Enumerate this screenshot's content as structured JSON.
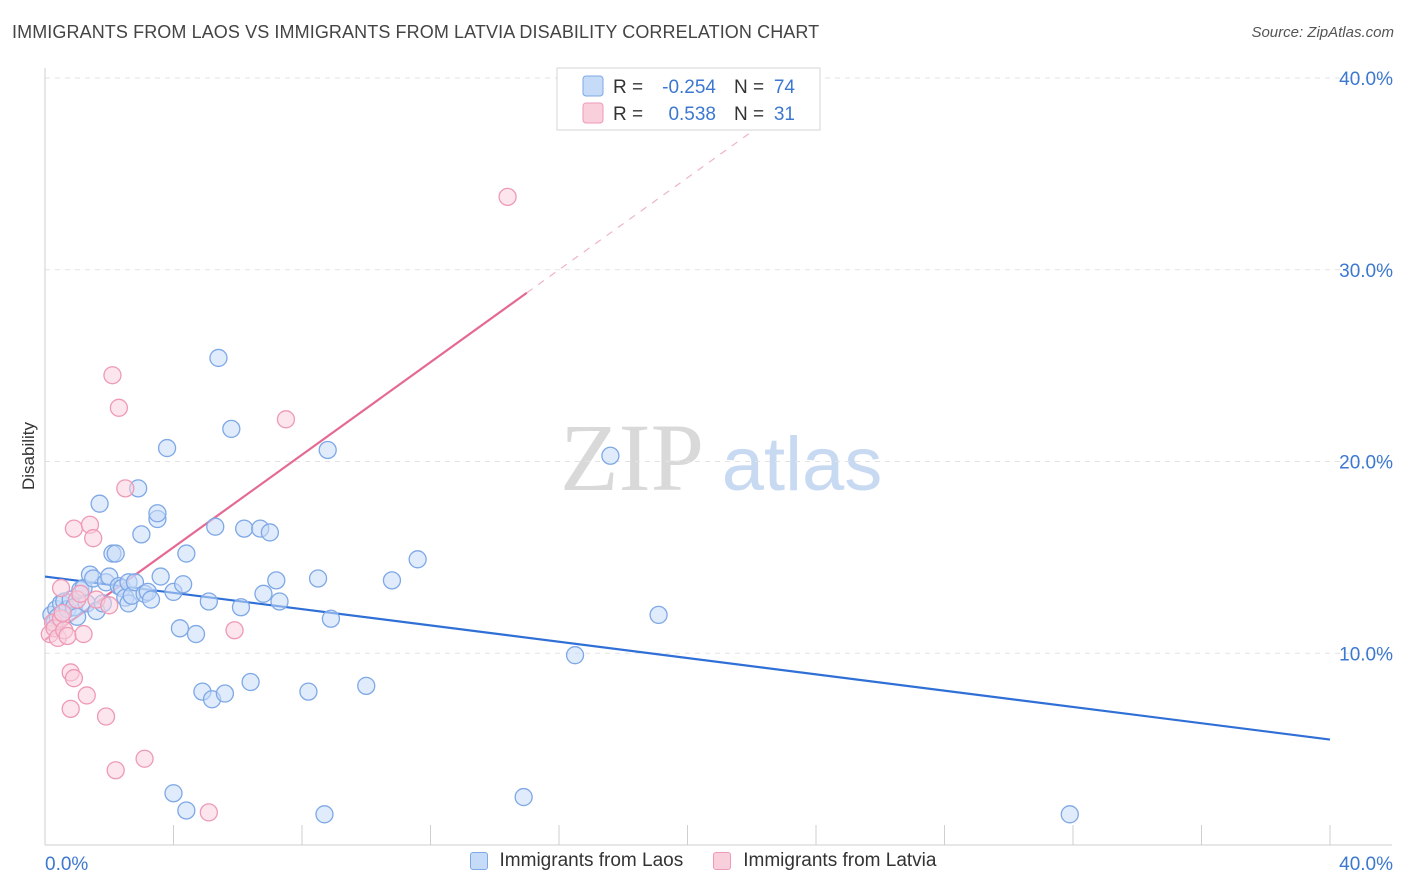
{
  "header": {
    "title": "IMMIGRANTS FROM LAOS VS IMMIGRANTS FROM LATVIA DISABILITY CORRELATION CHART",
    "source": "Source: ZipAtlas.com"
  },
  "watermark": {
    "zip": "ZIP",
    "atlas": "atlas"
  },
  "stats": {
    "r_label": "R =",
    "n_label": "N =",
    "laos": {
      "r": "-0.254",
      "n": "74"
    },
    "latvia": {
      "r": "0.538",
      "n": "31"
    }
  },
  "legend": {
    "laos": "Immigrants from Laos",
    "latvia": "Immigrants from Latvia"
  },
  "colors": {
    "laos_fill": "#c6dbf7",
    "laos_stroke": "#7ea8e6",
    "laos_line": "#2f6fd6",
    "latvia_fill": "#f9cfdc",
    "latvia_stroke": "#ee9ab6",
    "latvia_line": "#e46a94",
    "tick_text": "#3c78d0"
  },
  "chart_data": {
    "type": "scatter",
    "title": "IMMIGRANTS FROM LAOS VS IMMIGRANTS FROM LATVIA DISABILITY CORRELATION CHART",
    "xlabel": "",
    "ylabel": "Disability",
    "xlim": [
      0,
      40
    ],
    "ylim": [
      0,
      40
    ],
    "x_tick_labels": [
      "0.0%",
      "40.0%"
    ],
    "y_ticks": [
      10,
      20,
      30,
      40
    ],
    "y_tick_labels": [
      "10.0%",
      "20.0%",
      "30.0%",
      "40.0%"
    ],
    "grid": true,
    "series": [
      {
        "name": "Immigrants from Laos",
        "trend": {
          "x": [
            0,
            40
          ],
          "y": [
            14.0,
            5.5
          ]
        },
        "points": [
          [
            0.2,
            12.0
          ],
          [
            0.3,
            11.6
          ],
          [
            0.35,
            12.3
          ],
          [
            0.4,
            11.9
          ],
          [
            0.5,
            12.6
          ],
          [
            0.55,
            12.1
          ],
          [
            0.6,
            12.7
          ],
          [
            0.7,
            12.3
          ],
          [
            0.8,
            12.8
          ],
          [
            0.9,
            12.4
          ],
          [
            1.0,
            11.9
          ],
          [
            1.1,
            13.3
          ],
          [
            1.2,
            13.4
          ],
          [
            1.3,
            12.6
          ],
          [
            1.4,
            14.1
          ],
          [
            1.5,
            13.9
          ],
          [
            1.6,
            12.2
          ],
          [
            1.7,
            17.8
          ],
          [
            1.8,
            12.6
          ],
          [
            1.9,
            13.7
          ],
          [
            2.0,
            14.0
          ],
          [
            2.1,
            15.2
          ],
          [
            2.2,
            15.2
          ],
          [
            2.3,
            13.5
          ],
          [
            2.4,
            13.4
          ],
          [
            2.5,
            12.9
          ],
          [
            2.6,
            13.7
          ],
          [
            2.6,
            12.6
          ],
          [
            2.7,
            13.0
          ],
          [
            2.8,
            13.7
          ],
          [
            2.9,
            18.6
          ],
          [
            3.0,
            16.2
          ],
          [
            3.1,
            13.1
          ],
          [
            3.2,
            13.2
          ],
          [
            3.3,
            12.8
          ],
          [
            3.5,
            17.0
          ],
          [
            3.5,
            17.3
          ],
          [
            3.6,
            14.0
          ],
          [
            3.8,
            20.7
          ],
          [
            4.0,
            13.2
          ],
          [
            4.2,
            11.3
          ],
          [
            4.3,
            13.6
          ],
          [
            4.4,
            15.2
          ],
          [
            4.7,
            11.0
          ],
          [
            4.9,
            8.0
          ],
          [
            5.1,
            12.7
          ],
          [
            5.2,
            7.6
          ],
          [
            5.3,
            16.6
          ],
          [
            5.4,
            25.4
          ],
          [
            5.6,
            7.9
          ],
          [
            5.8,
            21.7
          ],
          [
            6.1,
            12.4
          ],
          [
            6.2,
            16.5
          ],
          [
            6.4,
            8.5
          ],
          [
            6.7,
            16.5
          ],
          [
            6.8,
            13.1
          ],
          [
            7.0,
            16.3
          ],
          [
            7.2,
            13.8
          ],
          [
            7.3,
            12.7
          ],
          [
            8.2,
            8.0
          ],
          [
            8.5,
            13.9
          ],
          [
            8.8,
            20.6
          ],
          [
            8.9,
            11.8
          ],
          [
            10.0,
            8.3
          ],
          [
            10.8,
            13.8
          ],
          [
            11.6,
            14.9
          ],
          [
            16.5,
            9.9
          ],
          [
            17.6,
            20.3
          ],
          [
            19.1,
            12.0
          ],
          [
            4.0,
            2.7
          ],
          [
            4.4,
            1.8
          ],
          [
            8.7,
            1.6
          ],
          [
            14.9,
            2.5
          ],
          [
            31.9,
            1.6
          ]
        ]
      },
      {
        "name": "Immigrants from Latvia",
        "trend": {
          "x": [
            0,
            15
          ],
          "y": [
            10.7,
            28.8
          ]
        },
        "dashed_extension": {
          "x": [
            15,
            23.5
          ],
          "y": [
            28.8,
            39.0
          ]
        },
        "points": [
          [
            0.15,
            11.0
          ],
          [
            0.25,
            11.6
          ],
          [
            0.3,
            11.3
          ],
          [
            0.4,
            10.8
          ],
          [
            0.5,
            11.8
          ],
          [
            0.55,
            12.1
          ],
          [
            0.6,
            11.2
          ],
          [
            0.7,
            10.9
          ],
          [
            0.5,
            13.4
          ],
          [
            0.8,
            9.0
          ],
          [
            0.8,
            7.1
          ],
          [
            0.9,
            8.7
          ],
          [
            0.9,
            16.5
          ],
          [
            1.0,
            12.8
          ],
          [
            1.1,
            13.1
          ],
          [
            1.2,
            11.0
          ],
          [
            1.3,
            7.8
          ],
          [
            1.4,
            16.7
          ],
          [
            1.5,
            16.0
          ],
          [
            1.6,
            12.8
          ],
          [
            1.9,
            6.7
          ],
          [
            2.1,
            24.5
          ],
          [
            2.2,
            3.9
          ],
          [
            2.3,
            22.8
          ],
          [
            2.5,
            18.6
          ],
          [
            3.1,
            4.5
          ],
          [
            5.1,
            1.7
          ],
          [
            5.9,
            11.2
          ],
          [
            7.5,
            22.2
          ],
          [
            14.4,
            33.8
          ],
          [
            2.0,
            12.5
          ]
        ]
      }
    ]
  }
}
